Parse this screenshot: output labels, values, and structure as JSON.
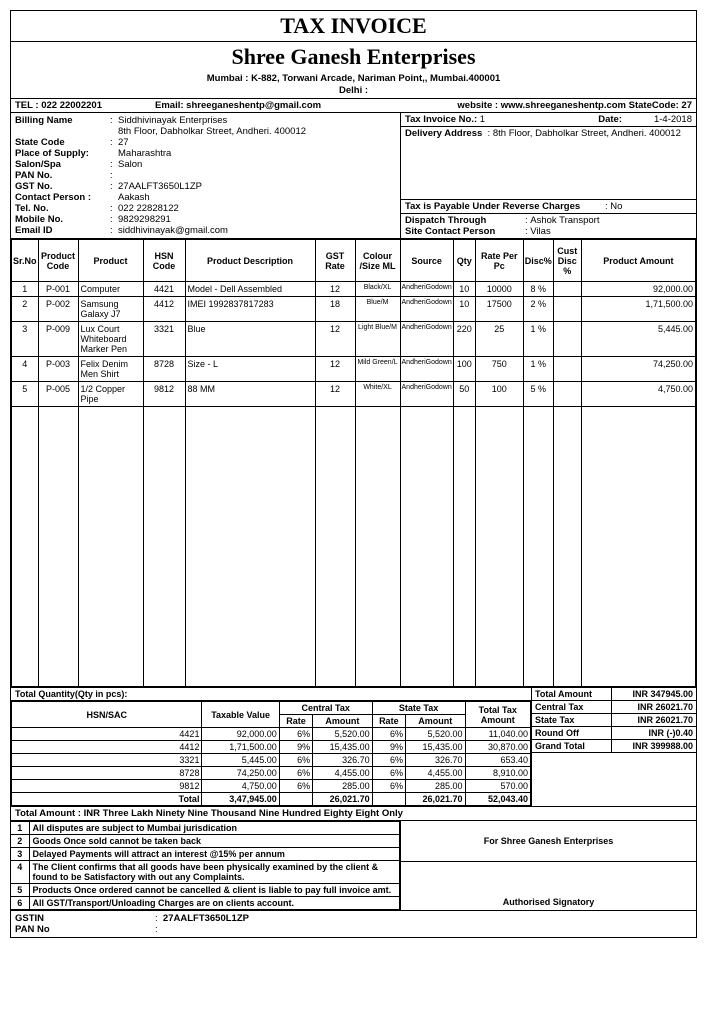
{
  "doc": {
    "title": "TAX INVOICE",
    "company": "Shree Ganesh Enterprises",
    "address": "Mumbai : K-882, Torwani Arcade, Nariman Point,, Mumbai.400001",
    "city": "Delhi :",
    "tel_lbl": "TEL : ",
    "tel": "022 22002201",
    "email_lbl": "Email: ",
    "email": "shreeganeshentp@gmail.com",
    "web_lbl": "website  : ",
    "web": "www.shreeganeshentp.com",
    "state_code_hdr": " StateCode: 27"
  },
  "billing": {
    "name_lbl": "Billing Name",
    "name": "Siddhivinayak Enterprises",
    "addr": "8th Floor, Dabholkar Street, Andheri. 400012",
    "state_code_lbl": "State Code",
    "state_code": "27",
    "place_lbl": "Place of Supply:",
    "place": "Maharashtra",
    "salon_lbl": "Salon/Spa",
    "salon": "Salon",
    "pan_lbl": "PAN No.",
    "pan": "",
    "gst_lbl": "GST No.",
    "gst": "27AALFT3650L1ZP",
    "contact_lbl": "Contact Person :",
    "contact": "Aakash",
    "tel_lbl": "Tel. No.",
    "tel": "022 22828122",
    "mob_lbl": "Mobile No.",
    "mob": "9829298291",
    "email_lbl": "Email ID",
    "email": "siddhivinayak@gmail.com"
  },
  "meta": {
    "inv_no_lbl": "Tax Invoice No.:",
    "inv_no": "1",
    "date_lbl": "Date:",
    "date": "1-4-2018",
    "del_lbl": "Delivery Address",
    "del_addr": "8th Floor, Dabholkar Street, Andheri. 400012",
    "reverse_lbl": "Tax  is Payable Under Reverse Charges",
    "reverse": "No",
    "dispatch_lbl": "Dispatch Through",
    "dispatch": "Ashok Transport",
    "site_lbl": "Site Contact Person",
    "site": "Vilas"
  },
  "headers": {
    "srno": "Sr.No",
    "code": "Product Code",
    "product": "Product",
    "hsn": "HSN Code",
    "desc": "Product Description",
    "gst": "GST Rate",
    "color": "Colour /Size ML",
    "source": "Source",
    "qty": "Qty",
    "rate": "Rate Per Pc",
    "disc": "Disc%",
    "cust": "Cust Disc %",
    "amount": "Product Amount"
  },
  "items": [
    {
      "sr": "1",
      "code": "P-001",
      "product": "Computer",
      "hsn": "4421",
      "desc": "Model - Dell Assembled",
      "gst": "12",
      "color": "Black/XL",
      "source": "AndheriGodown",
      "qty": "10",
      "rate": "10000",
      "disc": "8 %",
      "cust": "",
      "amt": "92,000.00"
    },
    {
      "sr": "2",
      "code": "P-002",
      "product": "Samsung Galaxy J7",
      "hsn": "4412",
      "desc": "IMEI 1992837817283",
      "gst": "18",
      "color": "Blue/M",
      "source": "AndheriGodown",
      "qty": "10",
      "rate": "17500",
      "disc": "2 %",
      "cust": "",
      "amt": "1,71,500.00"
    },
    {
      "sr": "3",
      "code": "P-009",
      "product": "Lux Court Whiteboard Marker Pen",
      "hsn": "3321",
      "desc": "Blue",
      "gst": "12",
      "color": "Light Blue/M",
      "source": "AndheriGodown",
      "qty": "220",
      "rate": "25",
      "disc": "1 %",
      "cust": "",
      "amt": "5,445.00"
    },
    {
      "sr": "4",
      "code": "P-003",
      "product": "Felix Denim Men Shirt",
      "hsn": "8728",
      "desc": "Size - L",
      "gst": "12",
      "color": "Mild Green/L",
      "source": "AndheriGodown",
      "qty": "100",
      "rate": "750",
      "disc": "1 %",
      "cust": "",
      "amt": "74,250.00"
    },
    {
      "sr": "5",
      "code": "P-005",
      "product": "1/2 Copper Pipe",
      "hsn": "9812",
      "desc": "88 MM",
      "gst": "12",
      "color": "White/XL",
      "source": "AndheriGodown",
      "qty": "50",
      "rate": "100",
      "disc": "5 %",
      "cust": "",
      "amt": "4,750.00"
    }
  ],
  "totals": {
    "qty_lbl": "Total Quantity(Qty in pcs):",
    "total_amt_lbl": "Total Amount",
    "total_amt": "INR  347945.00",
    "ctax_lbl": "Central Tax",
    "ctax": "INR    26021.70",
    "stax_lbl": "State Tax",
    "stax": "INR    26021.70",
    "round_lbl": "Round Off",
    "round": "INR           (-)0.40",
    "grand_lbl": "Grand Total",
    "grand": "INR   399988.00"
  },
  "hsn_headers": {
    "hsn": "HSN/SAC",
    "taxable": "Taxable Value",
    "ctax": "Central Tax",
    "stax": "State Tax",
    "rate": "Rate",
    "amount": "Amount",
    "total": "Total Tax Amount"
  },
  "hsn_rows": [
    {
      "hsn": "4421",
      "taxable": "92,000.00",
      "crate": "6%",
      "camt": "5,520.00",
      "srate": "6%",
      "samt": "5,520.00",
      "total": "11,040.00"
    },
    {
      "hsn": "4412",
      "taxable": "1,71,500.00",
      "crate": "9%",
      "camt": "15,435.00",
      "srate": "9%",
      "samt": "15,435.00",
      "total": "30,870.00"
    },
    {
      "hsn": "3321",
      "taxable": "5,445.00",
      "crate": "6%",
      "camt": "326.70",
      "srate": "6%",
      "samt": "326.70",
      "total": "653.40"
    },
    {
      "hsn": "8728",
      "taxable": "74,250.00",
      "crate": "6%",
      "camt": "4,455.00",
      "srate": "6%",
      "samt": "4,455.00",
      "total": "8,910.00"
    },
    {
      "hsn": "9812",
      "taxable": "4,750.00",
      "crate": "6%",
      "camt": "285.00",
      "srate": "6%",
      "samt": "285.00",
      "total": "570.00"
    }
  ],
  "hsn_total": {
    "lbl": "Total",
    "taxable": "3,47,945.00",
    "camt": "26,021.70",
    "samt": "26,021.70",
    "total": "52,043.40"
  },
  "words": {
    "lbl": "Total Amount   : ",
    "val": "INR Three Lakh Ninety Nine Thousand Nine Hundred Eighty Eight Only"
  },
  "terms": [
    {
      "n": "1",
      "t": "All disputes are subject to Mumbai jurisdication"
    },
    {
      "n": "2",
      "t": "Goods Once sold cannot be taken back"
    },
    {
      "n": "3",
      "t": "Delayed Payments will attract an interest @15% per annum"
    },
    {
      "n": "4",
      "t": "The Client confirms that all goods have been physically examined by the client & found to be Satisfactory with out any Complaints."
    },
    {
      "n": "5",
      "t": "Products Once ordered cannot be cancelled & client is liable to pay full invoice amt."
    },
    {
      "n": "6",
      "t": "All GST/Transport/Unloading Charges are on clients account."
    }
  ],
  "sig": {
    "for": "For Shree Ganesh Enterprises",
    "auth": "Authorised Signatory"
  },
  "footer": {
    "gstin_lbl": "GSTIN",
    "gstin": "27AALFT3650L1ZP",
    "pan_lbl": "PAN No",
    "pan": ""
  }
}
